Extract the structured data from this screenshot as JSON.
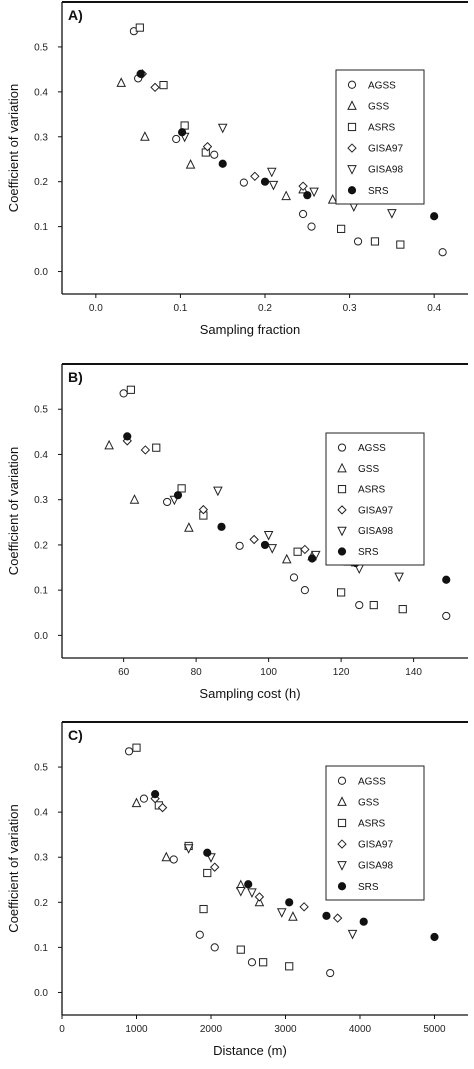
{
  "chart_data": [
    {
      "type": "scatter",
      "panel_label": "A)",
      "xlabel": "Sampling fraction",
      "ylabel": "Coefficient of variation",
      "xlim": [
        -0.04,
        0.44
      ],
      "ylim": [
        -0.05,
        0.6
      ],
      "xticks": [
        0.0,
        0.1,
        0.2,
        0.3,
        0.4
      ],
      "xtick_labels": [
        "0.0",
        "0.1",
        "0.2",
        "0.3",
        "0.4"
      ],
      "yticks": [
        0.0,
        0.1,
        0.2,
        0.3,
        0.4,
        0.5
      ],
      "ytick_labels": [
        "0.0",
        "0.1",
        "0.2",
        "0.3",
        "0.4",
        "0.5"
      ],
      "legend_position": "top-right",
      "series": [
        {
          "name": "AGSS",
          "marker": "circle",
          "points": [
            [
              0.045,
              0.535
            ],
            [
              0.05,
              0.43
            ],
            [
              0.095,
              0.295
            ],
            [
              0.14,
              0.26
            ],
            [
              0.175,
              0.198
            ],
            [
              0.245,
              0.128
            ],
            [
              0.255,
              0.1
            ],
            [
              0.31,
              0.067
            ],
            [
              0.41,
              0.043
            ]
          ]
        },
        {
          "name": "GSS",
          "marker": "triangle-up",
          "points": [
            [
              0.03,
              0.42
            ],
            [
              0.058,
              0.3
            ],
            [
              0.112,
              0.238
            ],
            [
              0.225,
              0.168
            ],
            [
              0.245,
              0.183
            ],
            [
              0.28,
              0.16
            ]
          ]
        },
        {
          "name": "ASRS",
          "marker": "square",
          "points": [
            [
              0.052,
              0.543
            ],
            [
              0.08,
              0.415
            ],
            [
              0.105,
              0.325
            ],
            [
              0.13,
              0.265
            ],
            [
              0.29,
              0.095
            ],
            [
              0.33,
              0.067
            ],
            [
              0.36,
              0.06
            ]
          ]
        },
        {
          "name": "GISA97",
          "marker": "diamond",
          "points": [
            [
              0.055,
              0.44
            ],
            [
              0.07,
              0.41
            ],
            [
              0.132,
              0.278
            ],
            [
              0.188,
              0.212
            ],
            [
              0.245,
              0.19
            ],
            [
              0.295,
              0.162
            ]
          ]
        },
        {
          "name": "GISA98",
          "marker": "triangle-down",
          "points": [
            [
              0.105,
              0.3
            ],
            [
              0.15,
              0.32
            ],
            [
              0.208,
              0.222
            ],
            [
              0.21,
              0.193
            ],
            [
              0.258,
              0.178
            ],
            [
              0.305,
              0.145
            ],
            [
              0.35,
              0.13
            ]
          ]
        },
        {
          "name": "SRS",
          "marker": "filled-circle",
          "points": [
            [
              0.053,
              0.44
            ],
            [
              0.102,
              0.31
            ],
            [
              0.15,
              0.24
            ],
            [
              0.2,
              0.2
            ],
            [
              0.25,
              0.17
            ],
            [
              0.3,
              0.16
            ],
            [
              0.4,
              0.123
            ]
          ]
        }
      ]
    },
    {
      "type": "scatter",
      "panel_label": "B)",
      "xlabel": "Sampling cost (h)",
      "ylabel": "Coefficient of variation",
      "xlim": [
        43,
        155
      ],
      "ylim": [
        -0.05,
        0.6
      ],
      "xticks": [
        60,
        80,
        100,
        120,
        140
      ],
      "xtick_labels": [
        "60",
        "80",
        "100",
        "120",
        "140"
      ],
      "yticks": [
        0.0,
        0.1,
        0.2,
        0.3,
        0.4,
        0.5
      ],
      "ytick_labels": [
        "0.0",
        "0.1",
        "0.2",
        "0.3",
        "0.4",
        "0.5"
      ],
      "legend_position": "top-right",
      "series": [
        {
          "name": "AGSS",
          "marker": "circle",
          "points": [
            [
              60,
              0.535
            ],
            [
              72,
              0.295
            ],
            [
              92,
              0.198
            ],
            [
              107,
              0.128
            ],
            [
              110,
              0.1
            ],
            [
              125,
              0.067
            ],
            [
              149,
              0.043
            ]
          ]
        },
        {
          "name": "GSS",
          "marker": "triangle-up",
          "points": [
            [
              56,
              0.42
            ],
            [
              63,
              0.3
            ],
            [
              78,
              0.238
            ],
            [
              105,
              0.168
            ],
            [
              112,
              0.175
            ],
            [
              122,
              0.163
            ]
          ]
        },
        {
          "name": "ASRS",
          "marker": "square",
          "points": [
            [
              62,
              0.543
            ],
            [
              69,
              0.415
            ],
            [
              76,
              0.325
            ],
            [
              82,
              0.265
            ],
            [
              108,
              0.185
            ],
            [
              120,
              0.095
            ],
            [
              129,
              0.067
            ],
            [
              137,
              0.058
            ]
          ]
        },
        {
          "name": "GISA97",
          "marker": "diamond",
          "points": [
            [
              61,
              0.43
            ],
            [
              66,
              0.41
            ],
            [
              82,
              0.278
            ],
            [
              96,
              0.212
            ],
            [
              110,
              0.19
            ],
            [
              123,
              0.162
            ]
          ]
        },
        {
          "name": "GISA98",
          "marker": "triangle-down",
          "points": [
            [
              74,
              0.3
            ],
            [
              86,
              0.32
            ],
            [
              100,
              0.222
            ],
            [
              101,
              0.193
            ],
            [
              113,
              0.178
            ],
            [
              125,
              0.148
            ],
            [
              136,
              0.13
            ]
          ]
        },
        {
          "name": "SRS",
          "marker": "filled-circle",
          "points": [
            [
              61,
              0.44
            ],
            [
              75,
              0.31
            ],
            [
              87,
              0.24
            ],
            [
              99,
              0.2
            ],
            [
              112,
              0.17
            ],
            [
              124,
              0.16
            ],
            [
              149,
              0.123
            ]
          ]
        }
      ]
    },
    {
      "type": "scatter",
      "panel_label": "C)",
      "xlabel": "Distance (m)",
      "ylabel": "Coefficient of variation",
      "xlim": [
        0,
        5450
      ],
      "ylim": [
        -0.05,
        0.6
      ],
      "xticks": [
        0,
        1000,
        2000,
        3000,
        4000,
        5000
      ],
      "xtick_labels": [
        "0",
        "1000",
        "2000",
        "3000",
        "4000",
        "5000"
      ],
      "yticks": [
        0.0,
        0.1,
        0.2,
        0.3,
        0.4,
        0.5
      ],
      "ytick_labels": [
        "0.0",
        "0.1",
        "0.2",
        "0.3",
        "0.4",
        "0.5"
      ],
      "legend_position": "top-right",
      "series": [
        {
          "name": "AGSS",
          "marker": "circle",
          "points": [
            [
              900,
              0.535
            ],
            [
              1100,
              0.43
            ],
            [
              1500,
              0.295
            ],
            [
              1850,
              0.128
            ],
            [
              2050,
              0.1
            ],
            [
              2550,
              0.067
            ],
            [
              3600,
              0.043
            ]
          ]
        },
        {
          "name": "GSS",
          "marker": "triangle-up",
          "points": [
            [
              1000,
              0.42
            ],
            [
              1400,
              0.3
            ],
            [
              2400,
              0.238
            ],
            [
              3100,
              0.168
            ],
            [
              2650,
              0.2
            ]
          ]
        },
        {
          "name": "ASRS",
          "marker": "square",
          "points": [
            [
              1000,
              0.543
            ],
            [
              1300,
              0.415
            ],
            [
              1700,
              0.325
            ],
            [
              1950,
              0.265
            ],
            [
              1900,
              0.185
            ],
            [
              2400,
              0.095
            ],
            [
              2700,
              0.067
            ],
            [
              3050,
              0.058
            ]
          ]
        },
        {
          "name": "GISA97",
          "marker": "diamond",
          "points": [
            [
              1250,
              0.43
            ],
            [
              1350,
              0.41
            ],
            [
              2050,
              0.278
            ],
            [
              2650,
              0.212
            ],
            [
              3250,
              0.19
            ],
            [
              3700,
              0.165
            ]
          ]
        },
        {
          "name": "GISA98",
          "marker": "triangle-down",
          "points": [
            [
              1700,
              0.32
            ],
            [
              2000,
              0.3
            ],
            [
              2550,
              0.222
            ],
            [
              2400,
              0.225
            ],
            [
              2950,
              0.178
            ],
            [
              3900,
              0.13
            ]
          ]
        },
        {
          "name": "SRS",
          "marker": "filled-circle",
          "points": [
            [
              1250,
              0.44
            ],
            [
              1950,
              0.31
            ],
            [
              2500,
              0.24
            ],
            [
              3050,
              0.2
            ],
            [
              3550,
              0.17
            ],
            [
              4050,
              0.157
            ],
            [
              5000,
              0.123
            ]
          ]
        }
      ]
    }
  ]
}
